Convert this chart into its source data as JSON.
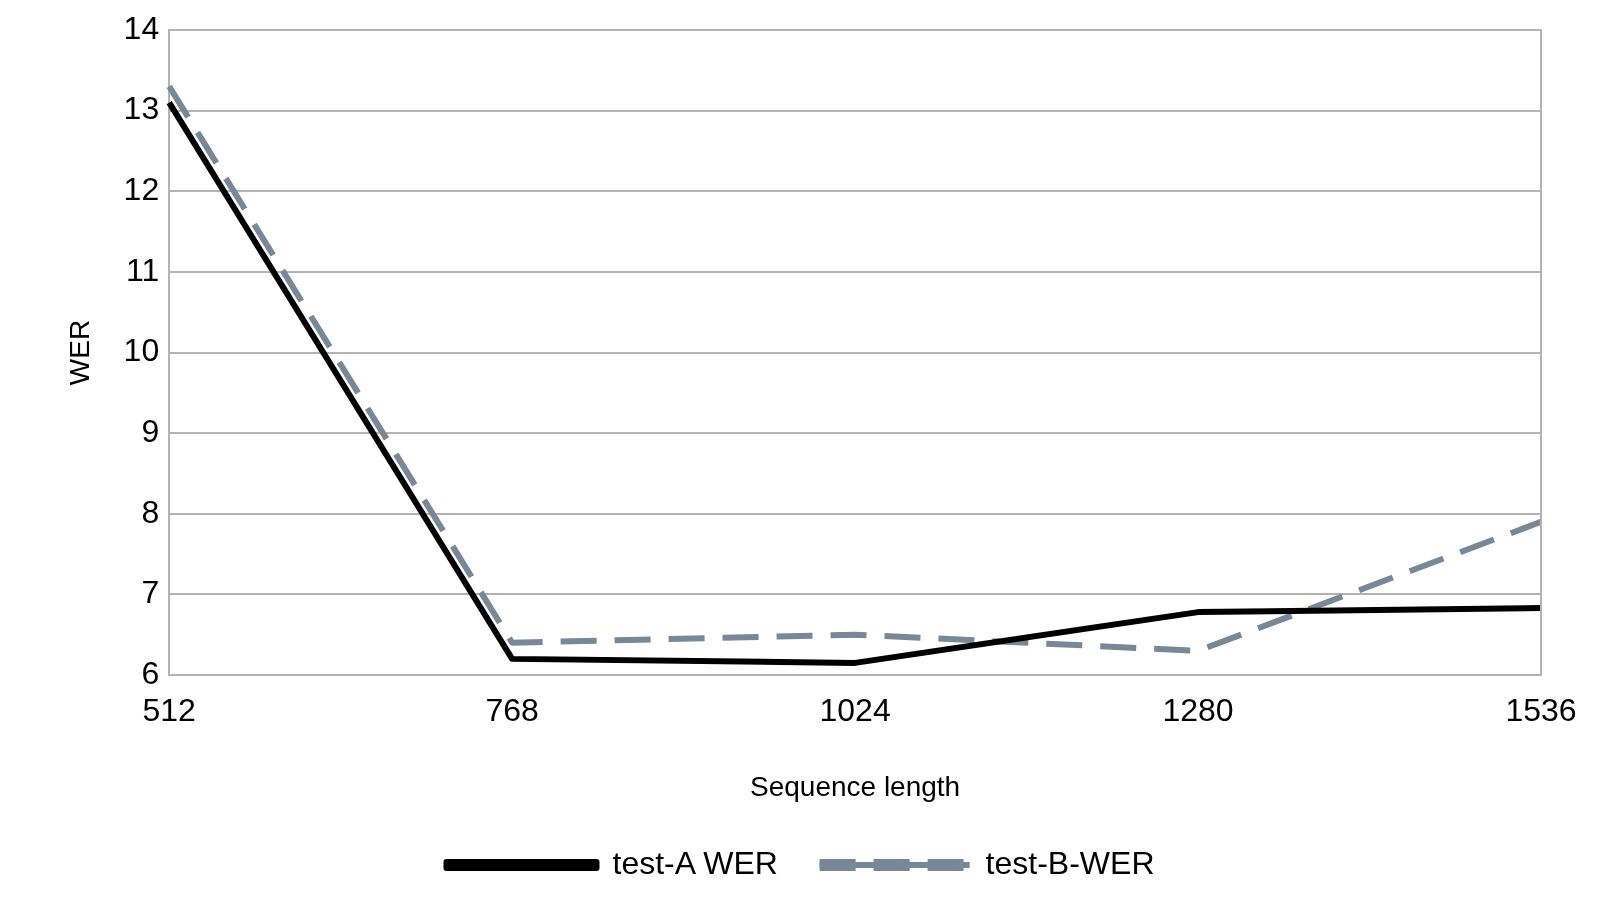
{
  "chart_data": {
    "type": "line",
    "xlabel": "Sequence length",
    "ylabel": "WER",
    "x": [
      512,
      768,
      1024,
      1280,
      1536
    ],
    "series": [
      {
        "name": "test-A WER",
        "color": "#000000",
        "values": [
          13.1,
          6.2,
          6.15,
          6.78,
          6.83
        ],
        "line_style": "solid"
      },
      {
        "name": "test-B-WER",
        "color": "#778899",
        "values": [
          13.3,
          6.4,
          6.5,
          6.3,
          7.9
        ],
        "line_style": "dashed"
      }
    ],
    "xlim": [
      512,
      1536
    ],
    "xticks": [
      512,
      768,
      1024,
      1280,
      1536
    ],
    "ylim": [
      6,
      14
    ],
    "yticks": [
      6,
      7,
      8,
      9,
      10,
      11,
      12,
      13,
      14
    ],
    "grid": "y",
    "legend": "bottom",
    "marker": "none"
  }
}
